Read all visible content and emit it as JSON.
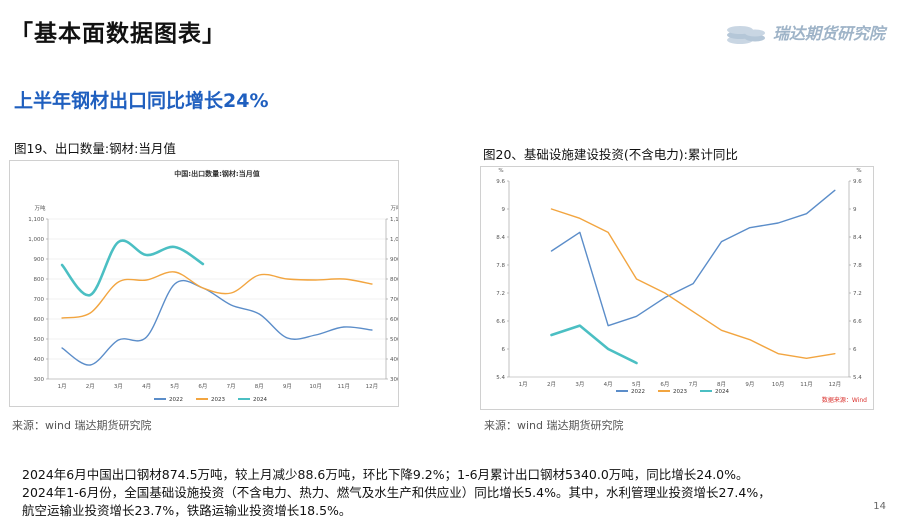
{
  "header": {
    "title": "「基本面数据图表」"
  },
  "logo": {
    "text": "瑞达期货研究院"
  },
  "headline": "上半年钢材出口同比增长24%",
  "figures": [
    {
      "caption": "图19、出口数量:钢材:当月值",
      "source": "来源：wind   瑞达期货研究院"
    },
    {
      "caption": "图20、基础设施建设投资(不含电力):累计同比",
      "source": "来源：wind   瑞达期货研究院"
    }
  ],
  "body": [
    "2024年6月中国出口钢材874.5万吨，较上月减少88.6万吨，环比下降9.2%；1-6月累计出口钢材5340.0万吨，同比增长24.0%。",
    "2024年1-6月份，全国基础设施投资（不含电力、热力、燃气及水生产和供应业）同比增长5.4%。其中，水利管理业投资增长27.4%，",
    "航空运输业投资增长23.7%，铁路运输业投资增长18.5%。"
  ],
  "page_number": "14",
  "chart_data": [
    {
      "type": "line",
      "title": "中国:出口数量:钢材:当月值",
      "unit_left": "万吨",
      "unit_right": "万吨",
      "categories": [
        "1月",
        "2月",
        "3月",
        "4月",
        "5月",
        "6月",
        "7月",
        "8月",
        "9月",
        "10月",
        "11月",
        "12月"
      ],
      "ylim": [
        300,
        1100
      ],
      "yticks": [
        "300",
        "400",
        "500",
        "600",
        "700",
        "800",
        "900",
        "1,000",
        "1,100"
      ],
      "series": [
        {
          "name": "2022",
          "color": "#5b8dc9",
          "values": [
            455,
            370,
            495,
            510,
            775,
            755,
            670,
            625,
            505,
            520,
            560,
            545
          ]
        },
        {
          "name": "2023",
          "color": "#f2a540",
          "values": [
            605,
            630,
            785,
            795,
            835,
            755,
            730,
            820,
            800,
            795,
            800,
            775
          ]
        },
        {
          "name": "2024",
          "color": "#4bbfc3",
          "values": [
            870,
            720,
            985,
            920,
            960,
            875,
            null,
            null,
            null,
            null,
            null,
            null
          ]
        }
      ]
    },
    {
      "type": "line",
      "unit_left": "%",
      "unit_right": "%",
      "categories": [
        "1月",
        "2月",
        "3月",
        "4月",
        "5月",
        "6月",
        "7月",
        "8月",
        "9月",
        "10月",
        "11月",
        "12月"
      ],
      "ylim": [
        5.4,
        9.6
      ],
      "yticks": [
        "5.4",
        "6",
        "6.6",
        "7.2",
        "7.8",
        "8.4",
        "9",
        "9.6"
      ],
      "legend_note": "数据来源：Wind",
      "series": [
        {
          "name": "2022",
          "color": "#5b8dc9",
          "values": [
            null,
            8.1,
            8.5,
            6.5,
            6.7,
            7.1,
            7.4,
            8.3,
            8.6,
            8.7,
            8.9,
            9.4
          ]
        },
        {
          "name": "2023",
          "color": "#f2a540",
          "values": [
            null,
            9.0,
            8.8,
            8.5,
            7.5,
            7.2,
            6.8,
            6.4,
            6.2,
            5.9,
            5.8,
            5.9
          ]
        },
        {
          "name": "2024",
          "color": "#4bbfc3",
          "values": [
            null,
            6.3,
            6.5,
            6.0,
            5.7,
            null,
            null,
            null,
            null,
            null,
            null,
            null
          ]
        }
      ]
    }
  ]
}
